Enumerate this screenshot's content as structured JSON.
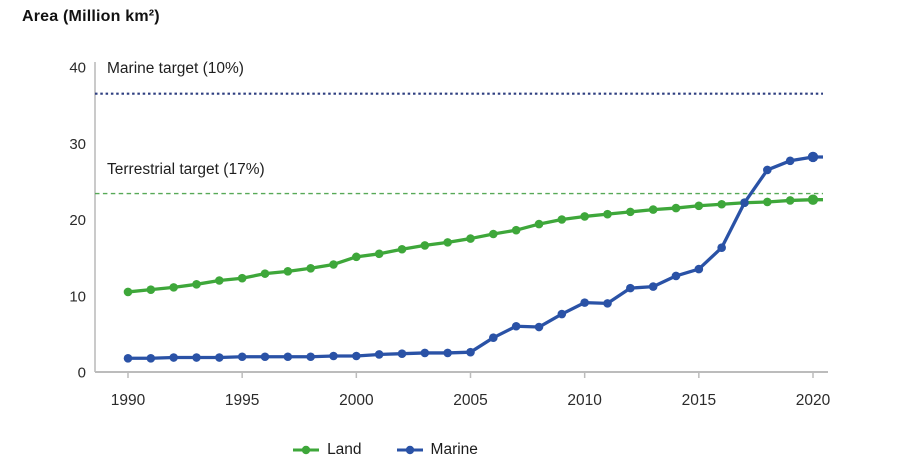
{
  "title": "Area (Million km²)",
  "chart_data": {
    "type": "line",
    "title": "Area (Million km²)",
    "ylabel": "Area (Million km²)",
    "xlabel": "",
    "xlim": [
      1990,
      2020
    ],
    "ylim": [
      0,
      40
    ],
    "x_ticks": [
      1990,
      1995,
      2000,
      2005,
      2010,
      2015,
      2020
    ],
    "y_ticks": [
      0,
      10,
      20,
      30,
      40
    ],
    "grid": false,
    "legend_position": "bottom",
    "x": [
      1990,
      1991,
      1992,
      1993,
      1994,
      1995,
      1996,
      1997,
      1998,
      1999,
      2000,
      2001,
      2002,
      2003,
      2004,
      2005,
      2006,
      2007,
      2008,
      2009,
      2010,
      2011,
      2012,
      2013,
      2014,
      2015,
      2016,
      2017,
      2018,
      2019,
      2020
    ],
    "series": [
      {
        "name": "Land",
        "color": "#3ea73a",
        "values": [
          10.5,
          10.8,
          11.1,
          11.5,
          12.0,
          12.3,
          12.9,
          13.2,
          13.6,
          14.1,
          15.1,
          15.5,
          16.1,
          16.6,
          17.0,
          17.5,
          18.1,
          18.6,
          19.4,
          20.0,
          20.4,
          20.7,
          21.0,
          21.3,
          21.5,
          21.8,
          22.0,
          22.2,
          22.3,
          22.5,
          22.6
        ]
      },
      {
        "name": "Marine",
        "color": "#2a52a6",
        "values": [
          1.8,
          1.8,
          1.9,
          1.9,
          1.9,
          2.0,
          2.0,
          2.0,
          2.0,
          2.1,
          2.1,
          2.3,
          2.4,
          2.5,
          2.5,
          2.6,
          4.5,
          6.0,
          5.9,
          7.6,
          9.1,
          9.0,
          11.0,
          11.2,
          12.6,
          13.5,
          16.3,
          22.2,
          26.5,
          27.7,
          28.2
        ]
      }
    ],
    "annotations": [
      {
        "id": "marine-target",
        "label": "Marine target (10%)",
        "value": 36.5,
        "style": "dotted",
        "color": "#2e3f80"
      },
      {
        "id": "terrestrial-target",
        "label": "Terrestrial target (17%)",
        "value": 23.4,
        "style": "dashed",
        "color": "#57a957"
      }
    ]
  }
}
